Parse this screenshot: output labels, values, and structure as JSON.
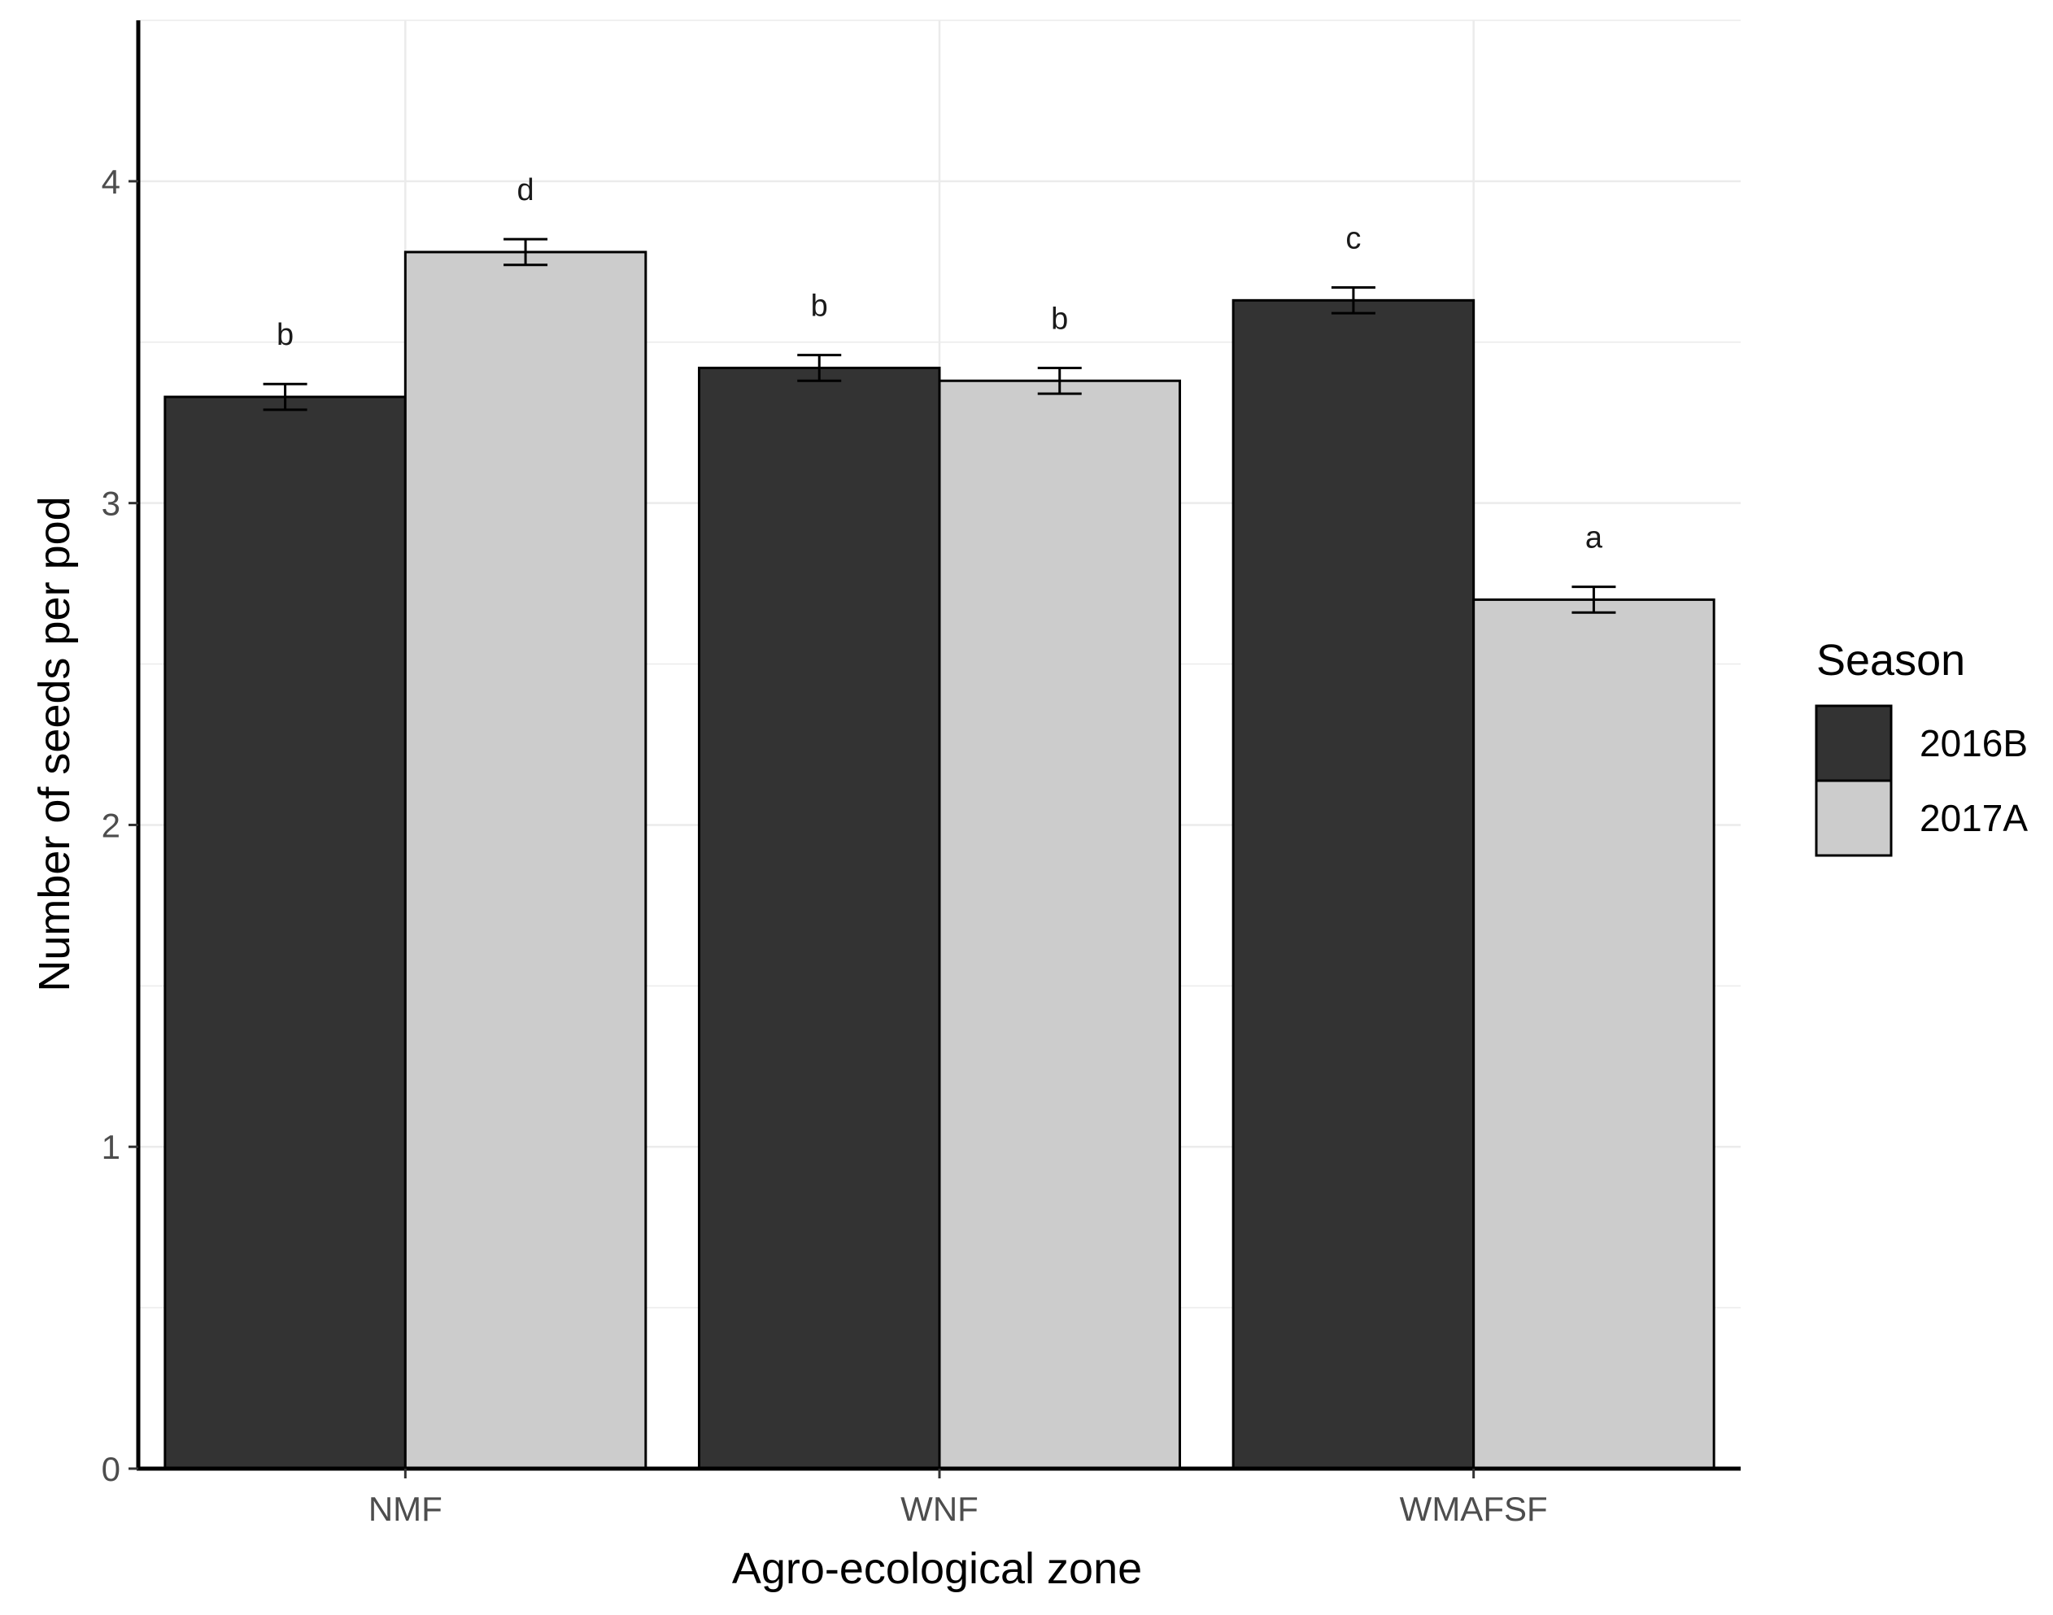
{
  "chart_data": {
    "type": "bar",
    "xlabel": "Agro-ecological zone",
    "ylabel": "Number of seeds per pod",
    "categories": [
      "NMF",
      "WNF",
      "WMAFSF"
    ],
    "ylim": [
      0,
      4.5
    ],
    "yticks": [
      "0",
      "1",
      "2",
      "3",
      "4"
    ],
    "grid": true,
    "legend": {
      "title": "Season",
      "position": "right"
    },
    "series": [
      {
        "name": "2016B",
        "color": "#333333",
        "values": [
          3.33,
          3.42,
          3.63
        ],
        "errors": [
          0.04,
          0.04,
          0.04
        ],
        "letters": [
          "b",
          "b",
          "c"
        ]
      },
      {
        "name": "2017A",
        "color": "#cccccc",
        "values": [
          3.78,
          3.38,
          2.7
        ],
        "errors": [
          0.04,
          0.04,
          0.04
        ],
        "letters": [
          "d",
          "b",
          "a"
        ]
      }
    ]
  }
}
